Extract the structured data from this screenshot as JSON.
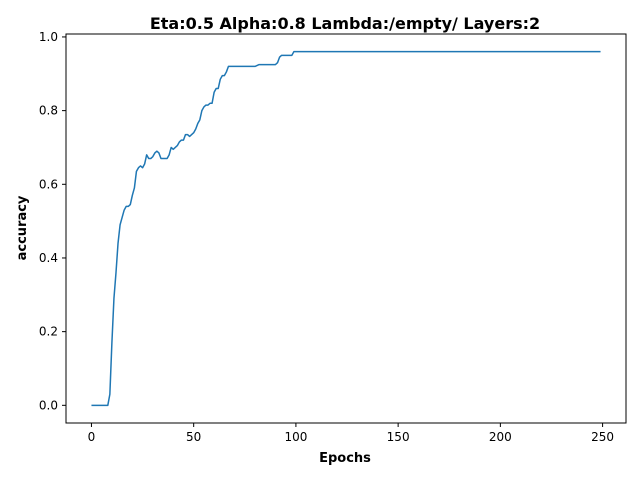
{
  "chart_data": {
    "type": "line",
    "title": "Eta:0.5  Alpha:0.8  Lambda:/empty/  Layers:2",
    "xlabel": "Epochs",
    "ylabel": "accuracy",
    "xlim": [
      -12.45,
      261.45
    ],
    "ylim": [
      -0.048,
      1.008
    ],
    "xticks": [
      0,
      50,
      100,
      150,
      200,
      250
    ],
    "yticks": [
      0.0,
      0.2,
      0.4,
      0.6,
      0.8,
      1.0
    ],
    "xtick_labels": [
      "0",
      "50",
      "100",
      "150",
      "200",
      "250"
    ],
    "ytick_labels": [
      "0.0",
      "0.2",
      "0.4",
      "0.6",
      "0.8",
      "1.0"
    ],
    "grid": false,
    "legend": "none",
    "series": [
      {
        "color": "#1f77b4",
        "x": [
          0,
          8,
          9,
          10,
          11,
          12,
          13,
          14,
          15,
          16,
          17,
          18,
          19,
          20,
          21,
          22,
          23,
          24,
          25,
          26,
          27,
          28,
          29,
          30,
          31,
          32,
          33,
          34,
          35,
          36,
          37,
          38,
          39,
          40,
          41,
          42,
          43,
          44,
          45,
          46,
          47,
          48,
          49,
          50,
          51,
          52,
          53,
          54,
          55,
          56,
          57,
          58,
          59,
          60,
          61,
          62,
          63,
          64,
          65,
          66,
          67,
          68,
          69,
          70,
          71,
          80,
          82,
          83,
          90,
          91,
          92,
          93,
          98,
          99,
          249
        ],
        "y": [
          0.0,
          0.0,
          0.03,
          0.17,
          0.29,
          0.36,
          0.44,
          0.49,
          0.51,
          0.53,
          0.54,
          0.54,
          0.545,
          0.57,
          0.59,
          0.635,
          0.645,
          0.65,
          0.645,
          0.655,
          0.68,
          0.67,
          0.67,
          0.675,
          0.685,
          0.69,
          0.685,
          0.67,
          0.67,
          0.67,
          0.67,
          0.68,
          0.7,
          0.695,
          0.7,
          0.705,
          0.715,
          0.72,
          0.72,
          0.735,
          0.735,
          0.73,
          0.735,
          0.74,
          0.75,
          0.765,
          0.775,
          0.8,
          0.81,
          0.815,
          0.815,
          0.82,
          0.82,
          0.85,
          0.86,
          0.86,
          0.885,
          0.895,
          0.895,
          0.905,
          0.92,
          0.92,
          0.92,
          0.92,
          0.92,
          0.92,
          0.925,
          0.925,
          0.925,
          0.93,
          0.945,
          0.95,
          0.95,
          0.96,
          0.96
        ]
      }
    ]
  }
}
